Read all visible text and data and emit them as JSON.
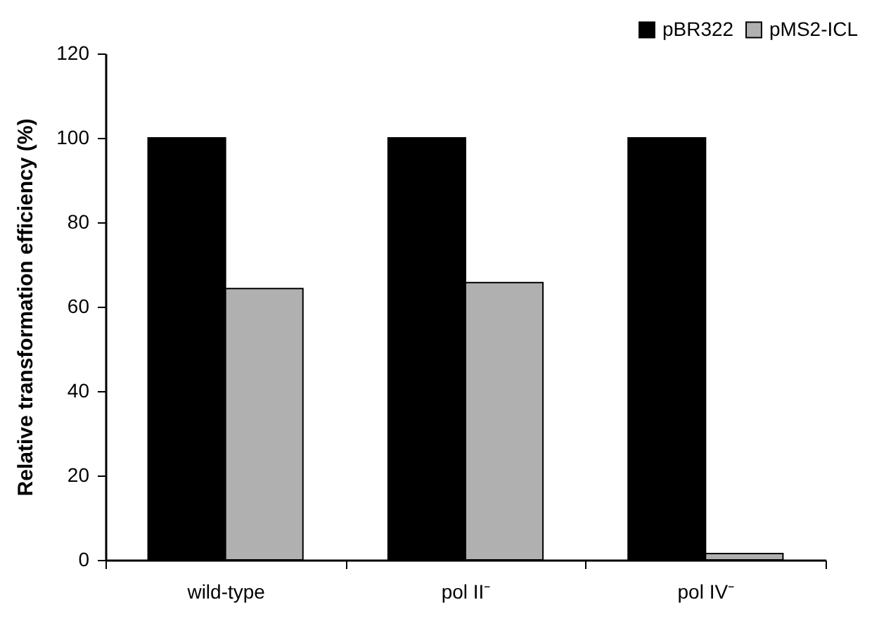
{
  "chart_data": {
    "type": "bar",
    "ylabel": "Relative transformation efficiency (%)",
    "categories": [
      "wild-type",
      "pol II⁻",
      "pol IV⁻"
    ],
    "series": [
      {
        "name": "pBR322",
        "color": "#000000",
        "values": [
          100,
          100,
          100
        ]
      },
      {
        "name": "pMS2-ICL",
        "color": "#b0b0b0",
        "values": [
          64.3,
          65.7,
          1.5
        ]
      }
    ],
    "ylim": [
      0,
      120
    ],
    "yticks": [
      0,
      20,
      40,
      60,
      80,
      100,
      120
    ],
    "grid": false,
    "legend": "top right"
  }
}
